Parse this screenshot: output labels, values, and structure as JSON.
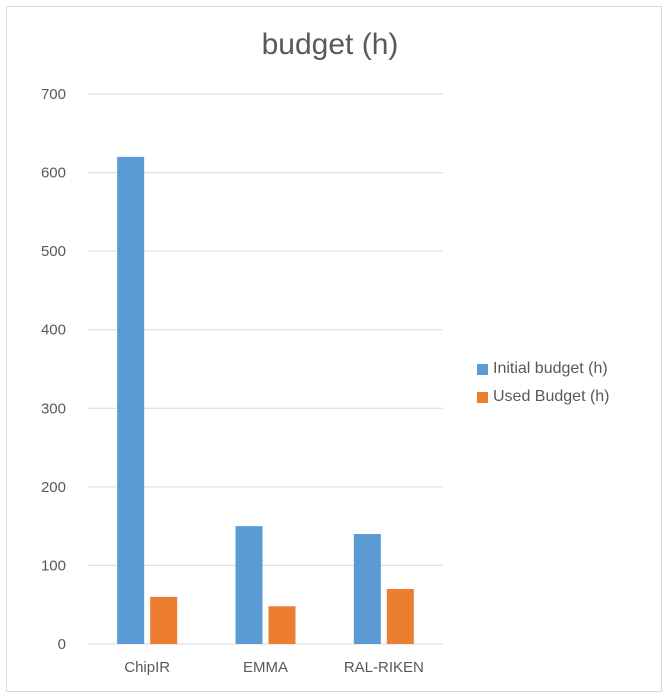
{
  "chart_data": {
    "type": "bar",
    "title": "budget (h)",
    "xlabel": "",
    "ylabel": "",
    "categories": [
      "ChipIR",
      "EMMA",
      "RAL-RIKEN"
    ],
    "series": [
      {
        "name": "Initial budget (h)",
        "values": [
          620,
          150,
          140
        ],
        "color": "#5b9bd5"
      },
      {
        "name": "Used Budget (h)",
        "values": [
          60,
          48,
          70
        ],
        "color": "#ed7d31"
      }
    ],
    "ylim": [
      0,
      700
    ],
    "yticks": [
      0,
      100,
      200,
      300,
      400,
      500,
      600,
      700
    ],
    "grid": true,
    "legend_position": "right",
    "colors": {
      "gridline": "#d9d9d9",
      "axis_text": "#595959"
    }
  }
}
